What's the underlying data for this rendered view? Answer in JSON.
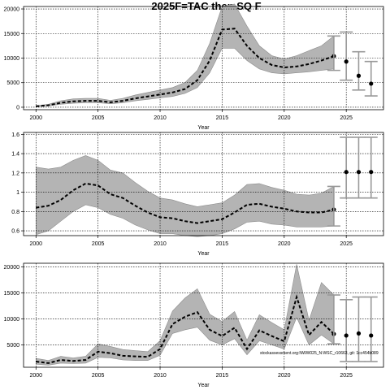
{
  "figure": {
    "title": "2025F=TAC then SQ F",
    "annotation": "stockassessment.org:NWW025_N:WSC_r10663, git: 1cc454b089"
  },
  "chart_data": [
    {
      "type": "area",
      "title": "2025F=TAC then SQ F",
      "xlabel": "Year",
      "ylabel": "",
      "xlim": [
        1999,
        2028
      ],
      "ylim": [
        -500,
        20500
      ],
      "xticks": [
        2000,
        2005,
        2010,
        2015,
        2020,
        2025
      ],
      "yticks": [
        0,
        5000,
        10000,
        15000,
        20000
      ],
      "grid": true,
      "x": [
        2000,
        2001,
        2002,
        2003,
        2004,
        2005,
        2006,
        2007,
        2008,
        2009,
        2010,
        2011,
        2012,
        2013,
        2014,
        2015,
        2016,
        2017,
        2018,
        2019,
        2020,
        2021,
        2022,
        2023,
        2024
      ],
      "series": [
        {
          "role": "estimate",
          "values": [
            200,
            400,
            900,
            1200,
            1300,
            1300,
            1000,
            1300,
            1800,
            2200,
            2600,
            3000,
            3700,
            5500,
            9500,
            15800,
            16000,
            12500,
            10000,
            8600,
            8100,
            8300,
            8800,
            9500,
            10400
          ]
        },
        {
          "role": "lower",
          "values": [
            100,
            300,
            600,
            800,
            900,
            900,
            700,
            900,
            1300,
            1600,
            1900,
            2200,
            2800,
            4000,
            7000,
            12000,
            12000,
            9500,
            7800,
            7000,
            6800,
            7000,
            7200,
            7500,
            7800
          ]
        },
        {
          "role": "upper",
          "values": [
            300,
            600,
            1300,
            1700,
            1800,
            1800,
            1400,
            1800,
            2500,
            3000,
            3500,
            4000,
            5000,
            7500,
            13000,
            20500,
            21000,
            16500,
            12500,
            10500,
            9800,
            10500,
            11500,
            12500,
            14500
          ]
        }
      ],
      "forecast": {
        "x": [
          2024,
          2025,
          2026,
          2027
        ],
        "values": [
          10400,
          9300,
          6400,
          4800
        ],
        "lower": [
          7500,
          5500,
          3500,
          2300
        ],
        "upper": [
          14500,
          15300,
          11300,
          9300
        ]
      }
    },
    {
      "type": "area",
      "xlabel": "Year",
      "ylabel": "",
      "xlim": [
        1999,
        2028
      ],
      "ylim": [
        0.55,
        1.62
      ],
      "xticks": [
        2000,
        2005,
        2010,
        2015,
        2020,
        2025
      ],
      "yticks": [
        0.6,
        0.8,
        1.0,
        1.2,
        1.4,
        1.6
      ],
      "grid": true,
      "x": [
        2000,
        2001,
        2002,
        2003,
        2004,
        2005,
        2006,
        2007,
        2008,
        2009,
        2010,
        2011,
        2012,
        2013,
        2014,
        2015,
        2016,
        2017,
        2018,
        2019,
        2020,
        2021,
        2022,
        2023,
        2024
      ],
      "series": [
        {
          "role": "estimate",
          "values": [
            0.84,
            0.86,
            0.92,
            1.02,
            1.09,
            1.07,
            0.98,
            0.94,
            0.86,
            0.79,
            0.74,
            0.73,
            0.7,
            0.68,
            0.7,
            0.72,
            0.79,
            0.87,
            0.88,
            0.85,
            0.83,
            0.8,
            0.79,
            0.79,
            0.82
          ]
        },
        {
          "role": "lower",
          "values": [
            0.56,
            0.6,
            0.7,
            0.8,
            0.87,
            0.84,
            0.77,
            0.73,
            0.66,
            0.61,
            0.57,
            0.57,
            0.55,
            0.54,
            0.55,
            0.57,
            0.62,
            0.69,
            0.7,
            0.67,
            0.66,
            0.64,
            0.64,
            0.64,
            0.65
          ]
        },
        {
          "role": "upper",
          "values": [
            1.26,
            1.24,
            1.26,
            1.33,
            1.38,
            1.33,
            1.23,
            1.2,
            1.1,
            1.01,
            0.94,
            0.92,
            0.88,
            0.85,
            0.87,
            0.89,
            0.97,
            1.08,
            1.09,
            1.05,
            1.02,
            0.98,
            0.97,
            0.99,
            1.06
          ]
        }
      ],
      "forecast": {
        "x": [
          2024,
          2025,
          2026,
          2027
        ],
        "values": [
          0.82,
          1.21,
          1.21,
          1.21
        ],
        "lower": [
          0.65,
          0.94,
          0.94,
          0.94
        ],
        "upper": [
          1.06,
          1.57,
          1.57,
          1.57
        ]
      }
    },
    {
      "type": "area",
      "xlabel": "Year",
      "ylabel": "",
      "xlim": [
        1999,
        2028
      ],
      "ylim": [
        700,
        20700
      ],
      "xticks": [
        2000,
        2005,
        2010,
        2015,
        2020,
        2025
      ],
      "yticks": [
        5000,
        10000,
        15000,
        20000
      ],
      "grid": true,
      "x": [
        2000,
        2001,
        2002,
        2003,
        2004,
        2005,
        2006,
        2007,
        2008,
        2009,
        2010,
        2011,
        2012,
        2013,
        2014,
        2015,
        2016,
        2017,
        2018,
        2019,
        2020,
        2021,
        2022,
        2023,
        2024
      ],
      "series": [
        {
          "role": "estimate",
          "values": [
            1800,
            1500,
            2100,
            1900,
            2100,
            3700,
            3400,
            2900,
            2800,
            2700,
            4200,
            9000,
            10400,
            11300,
            7900,
            6700,
            8300,
            4200,
            7800,
            6700,
            5700,
            14200,
            6900,
            9400,
            7100
          ]
        },
        {
          "role": "lower",
          "values": [
            1300,
            1100,
            1500,
            1400,
            1500,
            2600,
            2500,
            2100,
            2000,
            2000,
            3000,
            7200,
            7900,
            8400,
            5900,
            5000,
            6200,
            3100,
            5800,
            5000,
            4200,
            10300,
            5000,
            6900,
            5200
          ]
        },
        {
          "role": "upper",
          "values": [
            2400,
            2000,
            2800,
            2500,
            2800,
            5200,
            4700,
            4100,
            3900,
            3700,
            5800,
            11500,
            14000,
            15800,
            10900,
            9500,
            11400,
            5900,
            10800,
            9300,
            7900,
            20500,
            9700,
            17000,
            14600
          ]
        }
      ],
      "forecast": {
        "x": [
          2024,
          2025,
          2026,
          2027
        ],
        "values": [
          7100,
          6800,
          7200,
          6800
        ],
        "lower": [
          5200,
          1800,
          1800,
          1800
        ],
        "upper": [
          14600,
          13700,
          14200,
          14200
        ]
      }
    }
  ]
}
